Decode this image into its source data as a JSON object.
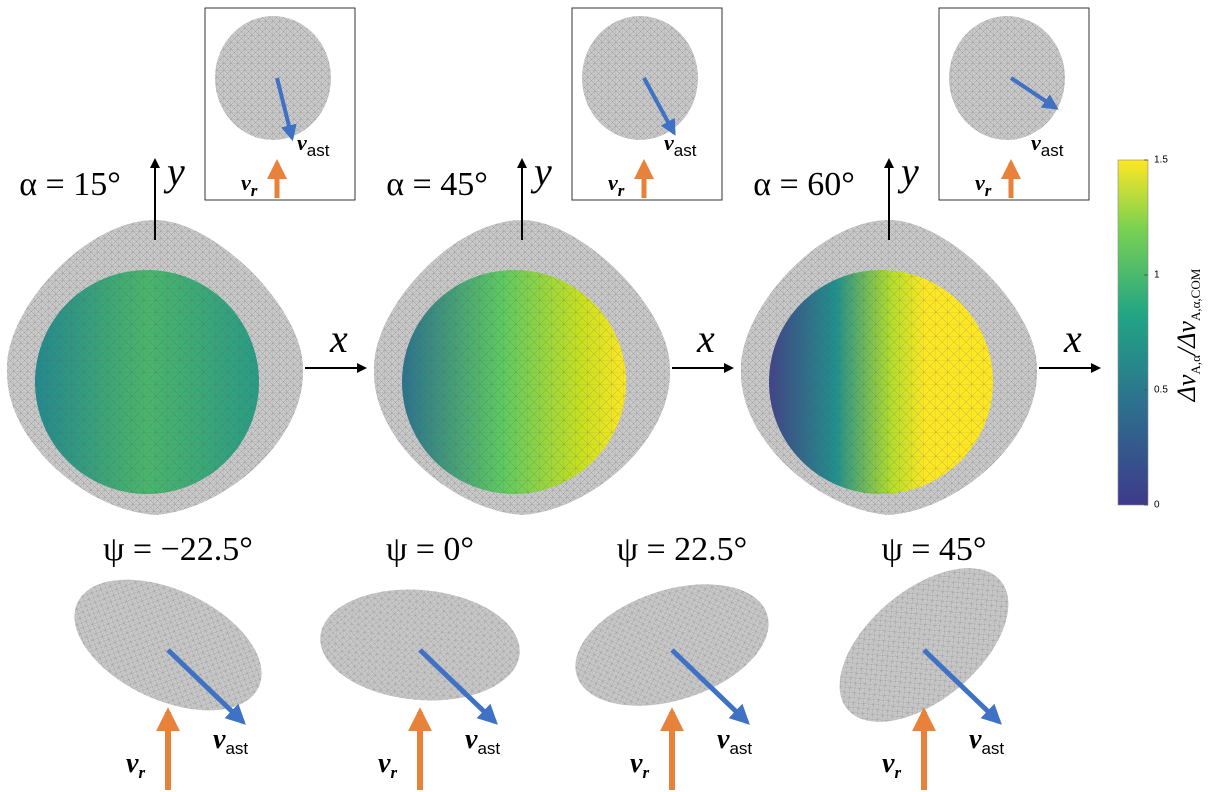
{
  "top_panels": [
    {
      "label": "α = 15°"
    },
    {
      "label": "α = 45°"
    },
    {
      "label": "α = 60°"
    }
  ],
  "axis_labels": {
    "x": "x",
    "y": "y"
  },
  "velocity_labels": {
    "v": "v",
    "r": "r",
    "ast": "ast"
  },
  "bottom_panels": [
    {
      "label": "ψ = −22.5°"
    },
    {
      "label": "ψ = 0°"
    },
    {
      "label": "ψ = 22.5°"
    },
    {
      "label": "ψ = 45°"
    }
  ],
  "colorbar": {
    "numerator": "Δv",
    "numerator_sub": "A,α",
    "denominator": "Δv",
    "denominator_sub": "A,α,COM",
    "range": [
      0,
      1.5
    ],
    "ticks": [
      0,
      0.5,
      1,
      1.5
    ]
  }
}
